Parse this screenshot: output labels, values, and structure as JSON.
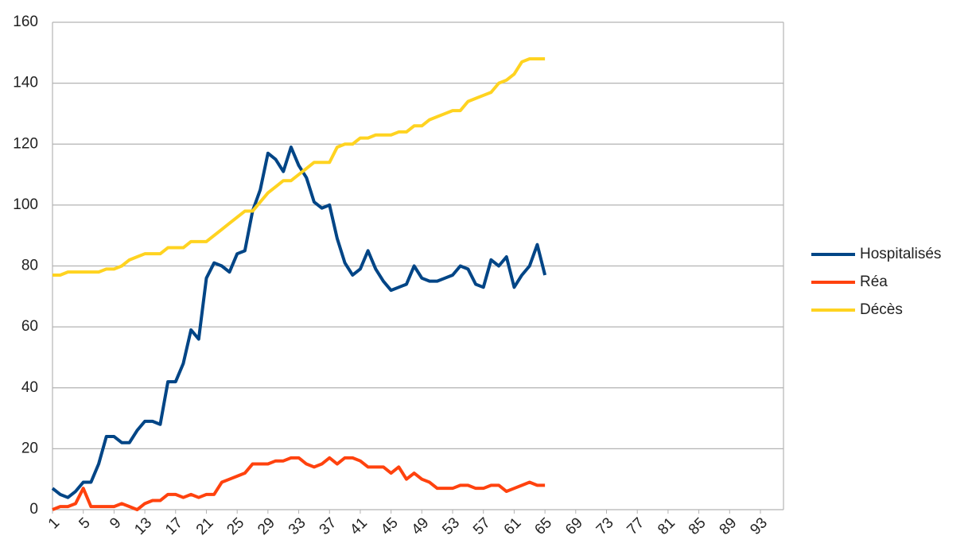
{
  "chart_data": {
    "type": "line",
    "x": [
      1,
      2,
      3,
      4,
      5,
      6,
      7,
      8,
      9,
      10,
      11,
      12,
      13,
      14,
      15,
      16,
      17,
      18,
      19,
      20,
      21,
      22,
      23,
      24,
      25,
      26,
      27,
      28,
      29,
      30,
      31,
      32,
      33,
      34,
      35,
      36,
      37,
      38,
      39,
      40,
      41,
      42,
      43,
      44,
      45,
      46,
      47,
      48,
      49,
      50,
      51,
      52,
      53,
      54,
      55,
      56,
      57,
      58,
      59,
      60,
      61,
      62,
      63,
      64,
      65
    ],
    "xlim": [
      1,
      96
    ],
    "xticks": [
      1,
      5,
      9,
      13,
      17,
      21,
      25,
      29,
      33,
      37,
      41,
      45,
      49,
      53,
      57,
      61,
      65,
      69,
      73,
      77,
      81,
      85,
      89,
      93
    ],
    "ylim": [
      0,
      160
    ],
    "yticks": [
      0,
      20,
      40,
      60,
      80,
      100,
      120,
      140,
      160
    ],
    "grid": true,
    "legend": "right",
    "series": [
      {
        "name": "Hospitalisés",
        "color": "#004586",
        "values": [
          7,
          5,
          4,
          6,
          9,
          9,
          15,
          24,
          24,
          22,
          22,
          26,
          29,
          29,
          28,
          42,
          42,
          48,
          59,
          56,
          76,
          81,
          80,
          78,
          84,
          85,
          98,
          105,
          117,
          115,
          111,
          119,
          113,
          109,
          101,
          99,
          100,
          89,
          81,
          77,
          79,
          85,
          79,
          75,
          72,
          73,
          74,
          80,
          76,
          75,
          75,
          76,
          77,
          80,
          79,
          74,
          73,
          82,
          80,
          83,
          73,
          77,
          80,
          87,
          77
        ]
      },
      {
        "name": "Réa",
        "color": "#ff420e",
        "values": [
          0,
          1,
          1,
          2,
          7,
          1,
          1,
          1,
          1,
          2,
          1,
          0,
          2,
          3,
          3,
          5,
          5,
          4,
          5,
          4,
          5,
          5,
          9,
          10,
          11,
          12,
          15,
          15,
          15,
          16,
          16,
          17,
          17,
          15,
          14,
          15,
          17,
          15,
          17,
          17,
          16,
          14,
          14,
          14,
          12,
          14,
          10,
          12,
          10,
          9,
          7,
          7,
          7,
          8,
          8,
          7,
          7,
          8,
          8,
          6,
          7,
          8,
          9,
          8,
          8
        ]
      },
      {
        "name": "Décès",
        "color": "#ffd320",
        "values": [
          77,
          77,
          78,
          78,
          78,
          78,
          78,
          79,
          79,
          80,
          82,
          83,
          84,
          84,
          84,
          86,
          86,
          86,
          88,
          88,
          88,
          90,
          92,
          94,
          96,
          98,
          98,
          101,
          104,
          106,
          108,
          108,
          110,
          112,
          114,
          114,
          114,
          119,
          120,
          120,
          122,
          122,
          123,
          123,
          123,
          124,
          124,
          126,
          126,
          128,
          129,
          130,
          131,
          131,
          134,
          135,
          136,
          137,
          140,
          141,
          143,
          147,
          148,
          148,
          148
        ]
      }
    ]
  }
}
